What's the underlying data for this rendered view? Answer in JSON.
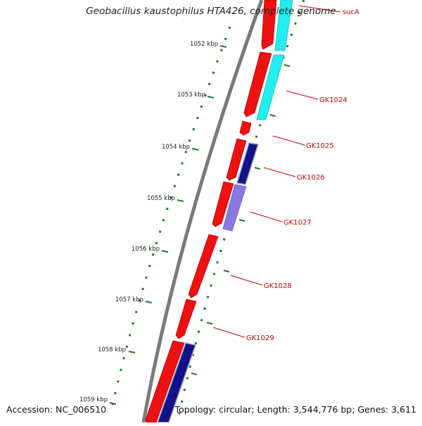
{
  "title": "Geobacillus kaustophilus HTA426, complete genome",
  "footer": {
    "accession": "Accession: NC_006510",
    "summary": "Topology: circular; Length: 3,544,776 bp; Genes: 3,611"
  },
  "colors": {
    "backbone": "#7a7a7a",
    "cds_forward": "#ee1111",
    "cds_cyan": "#22eef0",
    "cds_navy": "#12128a",
    "cds_lavender": "#8878e0",
    "ticks": "#1f7a1f",
    "gene_label": "#cc0000"
  },
  "scale": {
    "unit": "kbp",
    "ticks": [
      {
        "kbp": 1052,
        "label": "1052 kbp"
      },
      {
        "kbp": 1053,
        "label": "1053 kbp"
      },
      {
        "kbp": 1054,
        "label": "1054 kbp"
      },
      {
        "kbp": 1055,
        "label": "1055 kbp"
      },
      {
        "kbp": 1056,
        "label": "1056 kbp"
      },
      {
        "kbp": 1057,
        "label": "1057 kbp"
      },
      {
        "kbp": 1058,
        "label": "1058 kbp"
      },
      {
        "kbp": 1059,
        "label": "1059 kbp"
      }
    ]
  },
  "genes": [
    {
      "name": "sucA"
    },
    {
      "name": "GK1024"
    },
    {
      "name": "GK1025"
    },
    {
      "name": "GK1026"
    },
    {
      "name": "GK1027"
    },
    {
      "name": "GK1028"
    },
    {
      "name": "GK1029"
    }
  ]
}
